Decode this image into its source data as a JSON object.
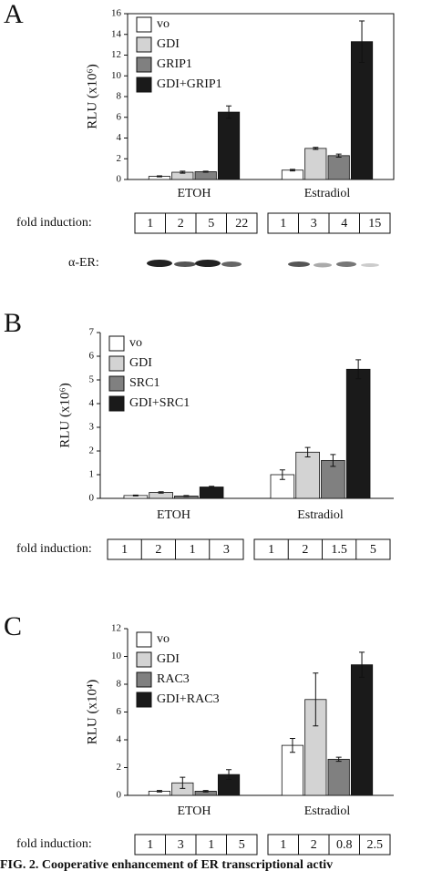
{
  "chart_data": [
    {
      "type": "bar",
      "panel": "A",
      "y_label": "RLU (x10⁶)",
      "categories": [
        "ETOH",
        "Estradiol"
      ],
      "series": [
        {
          "name": "vo",
          "color": "#ffffff",
          "values": [
            0.3,
            0.9
          ],
          "errors": [
            0.05,
            0.08
          ]
        },
        {
          "name": "GDI",
          "color": "#d3d3d3",
          "values": [
            0.7,
            3.0
          ],
          "errors": [
            0.1,
            0.1
          ]
        },
        {
          "name": "GRIP1",
          "color": "#808080",
          "values": [
            0.75,
            2.3
          ],
          "errors": [
            0.05,
            0.15
          ]
        },
        {
          "name": "GDI+GRIP1",
          "color": "#1a1a1a",
          "values": [
            6.5,
            13.3
          ],
          "errors": [
            0.6,
            2.0
          ]
        }
      ],
      "ylim": [
        0,
        16
      ],
      "yticks": [
        0,
        2,
        4,
        6,
        8,
        10,
        12,
        14,
        16
      ],
      "fold_induction": {
        "label": "fold induction:",
        "values": [
          [
            1,
            2,
            5,
            22
          ],
          [
            1,
            3,
            4,
            15
          ]
        ]
      },
      "blot_label": "α-ER:"
    },
    {
      "type": "bar",
      "panel": "B",
      "y_label": "RLU (x10⁶)",
      "categories": [
        "ETOH",
        "Estradiol"
      ],
      "series": [
        {
          "name": "vo",
          "color": "#ffffff",
          "values": [
            0.12,
            1.0
          ],
          "errors": [
            0.02,
            0.2
          ]
        },
        {
          "name": "GDI",
          "color": "#d3d3d3",
          "values": [
            0.25,
            1.95
          ],
          "errors": [
            0.03,
            0.2
          ]
        },
        {
          "name": "SRC1",
          "color": "#808080",
          "values": [
            0.1,
            1.6
          ],
          "errors": [
            0.02,
            0.25
          ]
        },
        {
          "name": "GDI+SRC1",
          "color": "#1a1a1a",
          "values": [
            0.48,
            5.45
          ],
          "errors": [
            0.03,
            0.4
          ]
        }
      ],
      "ylim": [
        0,
        7
      ],
      "yticks": [
        0,
        1,
        2,
        3,
        4,
        5,
        6,
        7
      ],
      "fold_induction": {
        "label": "fold induction:",
        "values": [
          [
            1,
            2,
            1,
            3
          ],
          [
            1,
            2,
            1.5,
            5
          ]
        ]
      }
    },
    {
      "type": "bar",
      "panel": "C",
      "y_label": "RLU (x10⁴)",
      "categories": [
        "ETOH",
        "Estradiol"
      ],
      "series": [
        {
          "name": "vo",
          "color": "#ffffff",
          "values": [
            0.3,
            3.6
          ],
          "errors": [
            0.05,
            0.5
          ]
        },
        {
          "name": "GDI",
          "color": "#d3d3d3",
          "values": [
            0.9,
            6.9
          ],
          "errors": [
            0.4,
            1.9
          ]
        },
        {
          "name": "RAC3",
          "color": "#808080",
          "values": [
            0.3,
            2.6
          ],
          "errors": [
            0.05,
            0.15
          ]
        },
        {
          "name": "GDI+RAC3",
          "color": "#1a1a1a",
          "values": [
            1.5,
            9.4
          ],
          "errors": [
            0.35,
            0.9
          ]
        }
      ],
      "ylim": [
        0,
        12
      ],
      "yticks": [
        0,
        2,
        4,
        6,
        8,
        10,
        12
      ],
      "fold_induction": {
        "label": "fold induction:",
        "values": [
          [
            1,
            3,
            1,
            5
          ],
          [
            1,
            2,
            0.8,
            2.5
          ]
        ]
      }
    }
  ],
  "caption": "FIG. 2. Cooperative enhancement of ER transcriptional activ"
}
